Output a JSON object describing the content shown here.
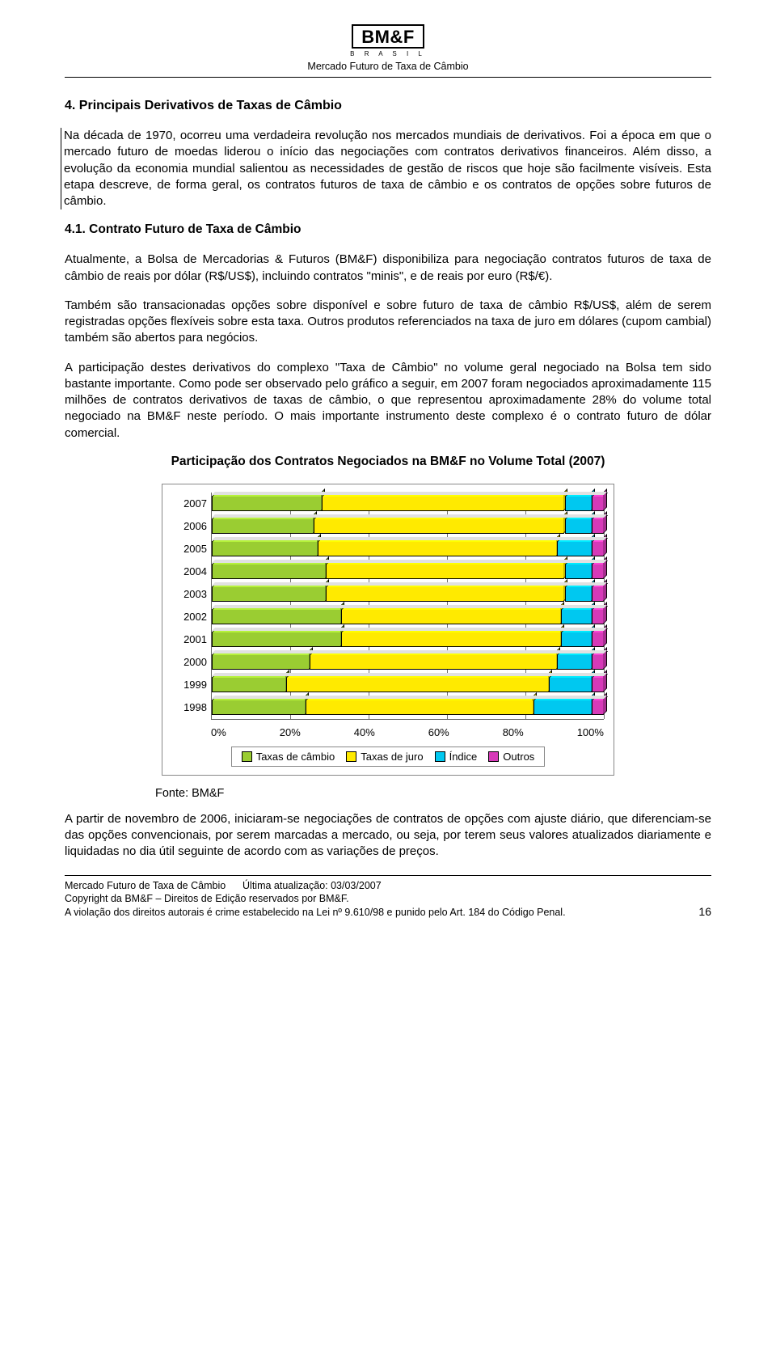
{
  "header": {
    "logo_main": "BM&F",
    "logo_sub": "B R A S I L",
    "title": "Mercado Futuro de Taxa de Câmbio"
  },
  "section": {
    "title": "4. Principais Derivativos de Taxas de Câmbio",
    "p1": "Na década de 1970, ocorreu uma verdadeira revolução nos mercados mundiais de derivativos. Foi a época em que o mercado futuro de moedas liderou o início das negociações com contratos derivativos financeiros. Além disso, a evolução da economia mundial salientou as necessidades de gestão de riscos que hoje são facilmente visíveis. Esta etapa descreve, de forma geral, os contratos futuros de taxa de câmbio e os contratos de opções sobre futuros de câmbio.",
    "sub_title": "4.1. Contrato Futuro de Taxa de Câmbio",
    "p2": "Atualmente, a Bolsa de Mercadorias & Futuros (BM&F) disponibiliza para negociação contratos futuros de taxa de câmbio de reais por dólar (R$/US$), incluindo contratos \"minis\", e de reais por euro (R$/€).",
    "p3": "Também são transacionadas opções sobre disponível e sobre futuro de taxa de câmbio R$/US$, além de serem registradas opções flexíveis sobre esta taxa. Outros produtos referenciados na taxa de juro em dólares (cupom cambial) também são abertos para negócios.",
    "p4": "A participação destes derivativos do complexo \"Taxa de Câmbio\" no volume geral negociado na Bolsa tem sido bastante importante. Como pode ser observado pelo gráfico a seguir, em 2007 foram negociados aproximadamente 115 milhões de contratos derivativos de taxas de câmbio, o que representou aproximadamente 28% do volume total negociado na BM&F neste período. O mais importante instrumento deste complexo é o contrato futuro de dólar comercial."
  },
  "chart": {
    "title": "Participação dos Contratos Negociados na BM&F no Volume Total (2007)",
    "x_ticks": [
      "0%",
      "20%",
      "40%",
      "60%",
      "80%",
      "100%"
    ],
    "series": [
      {
        "name": "Taxas de câmbio",
        "color": "#9acd32"
      },
      {
        "name": "Taxas de juro",
        "color": "#ffea00"
      },
      {
        "name": "Índice",
        "color": "#00c8f0"
      },
      {
        "name": "Outros",
        "color": "#d63ab8"
      }
    ],
    "rows": [
      {
        "label": "2007",
        "values": [
          28,
          62,
          7,
          3
        ]
      },
      {
        "label": "2006",
        "values": [
          26,
          64,
          7,
          3
        ]
      },
      {
        "label": "2005",
        "values": [
          27,
          61,
          9,
          3
        ]
      },
      {
        "label": "2004",
        "values": [
          29,
          61,
          7,
          3
        ]
      },
      {
        "label": "2003",
        "values": [
          29,
          61,
          7,
          3
        ]
      },
      {
        "label": "2002",
        "values": [
          33,
          56,
          8,
          3
        ]
      },
      {
        "label": "2001",
        "values": [
          33,
          56,
          8,
          3
        ]
      },
      {
        "label": "2000",
        "values": [
          25,
          63,
          9,
          3
        ]
      },
      {
        "label": "1999",
        "values": [
          19,
          67,
          11,
          3
        ]
      },
      {
        "label": "1998",
        "values": [
          24,
          58,
          15,
          3
        ]
      }
    ],
    "source": "Fonte: BM&F"
  },
  "after_chart": "A partir de novembro de 2006, iniciaram-se negociações de contratos de opções com ajuste diário, que diferenciam-se das opções convencionais, por serem marcadas a mercado, ou seja, por terem seus valores atualizados diariamente e liquidadas no dia útil seguinte de acordo com as variações de preços.",
  "footer": {
    "l1a": "Mercado Futuro de Taxa de Câmbio",
    "l1b": "Última atualização: 03/03/2007",
    "l2": "Copyright  da BM&F – Direitos de Edição reservados por BM&F.",
    "l3": "A violação dos direitos autorais é crime estabelecido na Lei nº 9.610/98 e punido pelo Art. 184 do Código Penal.",
    "page": "16"
  }
}
